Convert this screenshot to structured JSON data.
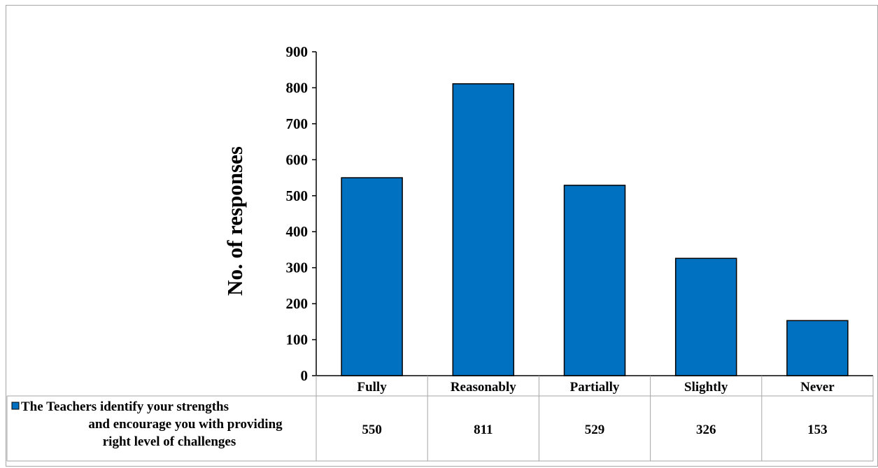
{
  "chart_data": {
    "type": "bar",
    "categories": [
      "Fully",
      "Reasonably",
      "Partially",
      "Slightly",
      "Never"
    ],
    "series": [
      {
        "name": "The Teachers identify your strengths and encourage you with providing right level of challenges",
        "name_lines": [
          "The Teachers identify your strengths",
          "and encourage you with providing",
          "right level of challenges"
        ],
        "values": [
          550,
          811,
          529,
          326,
          153
        ],
        "color": "#0070c0"
      }
    ],
    "ylabel": "No. of responses",
    "ylim": [
      0,
      900
    ],
    "yticks": [
      0,
      100,
      200,
      300,
      400,
      500,
      600,
      700,
      800,
      900
    ],
    "grid": false,
    "data_table": true
  }
}
